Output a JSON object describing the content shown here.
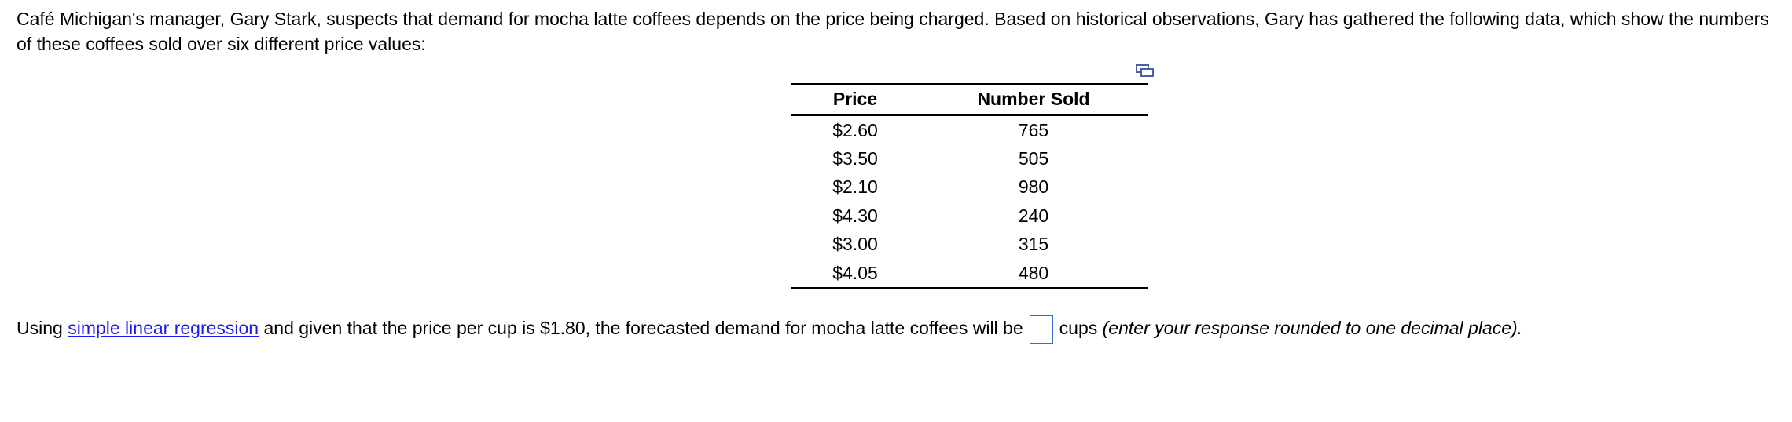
{
  "intro": {
    "text": "Café Michigan's manager, Gary Stark, suspects that demand for mocha latte coffees depends on the price being charged.  Based on historical observations, Gary has gathered the following data, which show the numbers of these coffees sold over six different price values:"
  },
  "data_table": {
    "headers": {
      "price": "Price",
      "sold": "Number Sold"
    },
    "rows": [
      {
        "price": "$2.60",
        "sold": "765"
      },
      {
        "price": "$3.50",
        "sold": "505"
      },
      {
        "price": "$2.10",
        "sold": "980"
      },
      {
        "price": "$4.30",
        "sold": "240"
      },
      {
        "price": "$3.00",
        "sold": "315"
      },
      {
        "price": "$4.05",
        "sold": "480"
      }
    ]
  },
  "question": {
    "prefix": "Using ",
    "link_text": "simple linear regression",
    "middle": " and given that the price per cup is $1.80, the forecasted demand for mocha latte coffees will be",
    "answer_value": "",
    "units": "cups ",
    "hint": "(enter your response rounded to one decimal place)."
  },
  "icons": {
    "copy": "copy-to-clipboard-icon"
  },
  "colors": {
    "link": "#1a1aee",
    "input_border": "#2f6fd6",
    "icon": "#4a5fa8"
  }
}
